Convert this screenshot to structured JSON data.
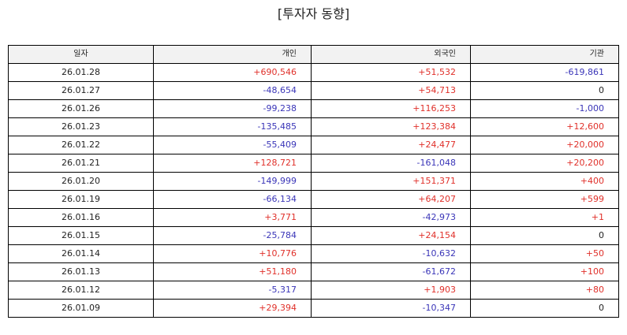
{
  "title": "[투자자 동향]",
  "columns": [
    "일자",
    "개인",
    "외국인",
    "기관"
  ],
  "colors": {
    "positive": "#e0302a",
    "negative": "#3a35b8",
    "zero": "#222222",
    "header_bg": "#f2f2f2",
    "border": "#000000"
  },
  "rows": [
    {
      "date": "26.01.28",
      "individual": "+690,546",
      "foreign": "+51,532",
      "institution": "-619,861"
    },
    {
      "date": "26.01.27",
      "individual": "-48,654",
      "foreign": "+54,713",
      "institution": "0"
    },
    {
      "date": "26.01.26",
      "individual": "-99,238",
      "foreign": "+116,253",
      "institution": "-1,000"
    },
    {
      "date": "26.01.23",
      "individual": "-135,485",
      "foreign": "+123,384",
      "institution": "+12,600"
    },
    {
      "date": "26.01.22",
      "individual": "-55,409",
      "foreign": "+24,477",
      "institution": "+20,000"
    },
    {
      "date": "26.01.21",
      "individual": "+128,721",
      "foreign": "-161,048",
      "institution": "+20,200"
    },
    {
      "date": "26.01.20",
      "individual": "-149,999",
      "foreign": "+151,371",
      "institution": "+400"
    },
    {
      "date": "26.01.19",
      "individual": "-66,134",
      "foreign": "+64,207",
      "institution": "+599"
    },
    {
      "date": "26.01.16",
      "individual": "+3,771",
      "foreign": "-42,973",
      "institution": "+1"
    },
    {
      "date": "26.01.15",
      "individual": "-25,784",
      "foreign": "+24,154",
      "institution": "0"
    },
    {
      "date": "26.01.14",
      "individual": "+10,776",
      "foreign": "-10,632",
      "institution": "+50"
    },
    {
      "date": "26.01.13",
      "individual": "+51,180",
      "foreign": "-61,672",
      "institution": "+100"
    },
    {
      "date": "26.01.12",
      "individual": "-5,317",
      "foreign": "+1,903",
      "institution": "+80"
    },
    {
      "date": "26.01.09",
      "individual": "+29,394",
      "foreign": "-10,347",
      "institution": "0"
    }
  ]
}
